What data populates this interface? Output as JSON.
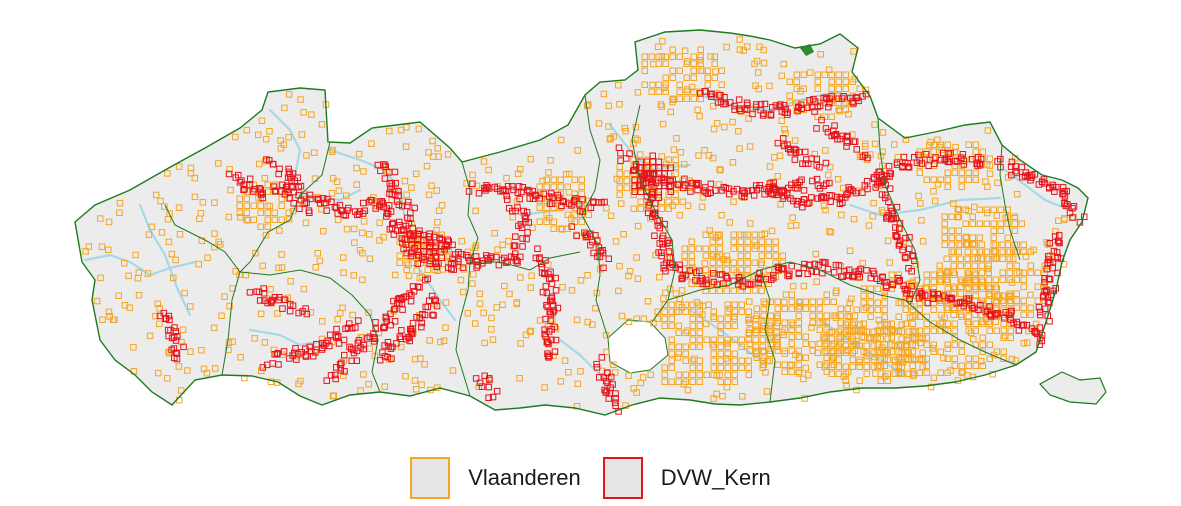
{
  "legend": {
    "items": [
      {
        "label": "Vlaanderen",
        "color": "#f5a623"
      },
      {
        "label": "DVW_Kern",
        "color": "#e8131b"
      }
    ]
  },
  "colors": {
    "background": "#ffffff",
    "region_fill": "#ececec",
    "boundary": "#1f7a1f",
    "river": "#a7d8e6",
    "vlaanderen_cell": "#f5a623",
    "dvw_kern_cell": "#e8131b"
  }
}
